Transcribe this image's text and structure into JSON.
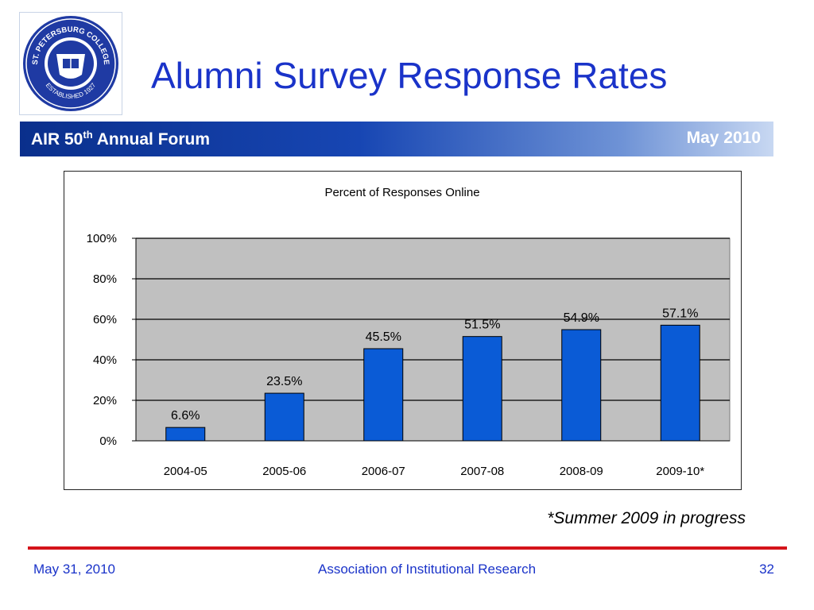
{
  "header": {
    "title": "Alumni Survey Response Rates",
    "logo": {
      "name": "St. Petersburg College seal",
      "text_top": "ST. PETERSBURG COLLEGE",
      "text_bottom": "ESTABLISHED 1927"
    }
  },
  "band": {
    "forum_prefix": "AIR 50",
    "forum_sup": "th",
    "forum_suffix": " Annual Forum",
    "date": "May 2010"
  },
  "colors": {
    "title_blue": "#1a33c9",
    "band_dark": "#0a2f8c",
    "bar_fill": "#0a5bd6",
    "plot_bg": "#c0c0c0",
    "footer_rule": "#d4141b"
  },
  "chart_data": {
    "type": "bar",
    "title": "Percent of Responses Online",
    "categories": [
      "2004-05",
      "2005-06",
      "2006-07",
      "2007-08",
      "2008-09",
      "2009-10*"
    ],
    "values": [
      6.6,
      23.5,
      45.5,
      51.5,
      54.9,
      57.1
    ],
    "data_labels": [
      "6.6%",
      "23.5%",
      "45.5%",
      "51.5%",
      "54.9%",
      "57.1%"
    ],
    "y_ticks": [
      "0%",
      "20%",
      "40%",
      "60%",
      "80%",
      "100%"
    ],
    "ylim": [
      0,
      100
    ],
    "xlabel": "",
    "ylabel": "",
    "grid": true,
    "legend": "none"
  },
  "note": "*Summer 2009 in progress",
  "footer": {
    "date": "May 31, 2010",
    "organization": "Association of Institutional Research",
    "page": "32"
  }
}
